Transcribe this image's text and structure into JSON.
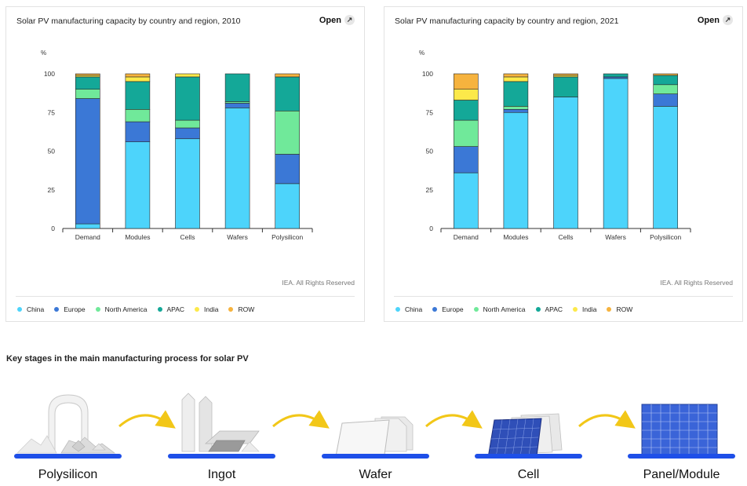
{
  "charts": [
    {
      "title": "Solar PV manufacturing capacity by country and region, 2010",
      "open_label": "Open",
      "credit": "IEA. All Rights Reserved"
    },
    {
      "title": "Solar PV manufacturing capacity by country and region, 2021",
      "open_label": "Open",
      "credit": "IEA. All Rights Reserved"
    }
  ],
  "legend": [
    {
      "name": "China",
      "color": "#4dd4fb"
    },
    {
      "name": "Europe",
      "color": "#3b78d6"
    },
    {
      "name": "North America",
      "color": "#70e99a"
    },
    {
      "name": "APAC",
      "color": "#14a898"
    },
    {
      "name": "India",
      "color": "#fce94a"
    },
    {
      "name": "ROW",
      "color": "#f6b33e"
    }
  ],
  "chart_data": [
    {
      "type": "bar",
      "stacked": true,
      "title": "Solar PV manufacturing capacity by country and region, 2010",
      "ylabel": "%",
      "ylim": [
        0,
        100
      ],
      "yticks": [
        0,
        25,
        50,
        75,
        100
      ],
      "categories": [
        "Demand",
        "Modules",
        "Cells",
        "Wafers",
        "Polysilicon"
      ],
      "series": [
        {
          "name": "China",
          "values": [
            3,
            56,
            58,
            78,
            29
          ]
        },
        {
          "name": "Europe",
          "values": [
            81,
            13,
            7,
            3,
            19
          ]
        },
        {
          "name": "North America",
          "values": [
            6,
            8,
            5,
            1,
            28
          ]
        },
        {
          "name": "APAC",
          "values": [
            8,
            18,
            28,
            18,
            22
          ]
        },
        {
          "name": "India",
          "values": [
            1,
            3,
            2,
            0,
            0
          ]
        },
        {
          "name": "ROW",
          "values": [
            1,
            2,
            0,
            0,
            2
          ]
        }
      ],
      "legend_position": "bottom",
      "grid": false
    },
    {
      "type": "bar",
      "stacked": true,
      "title": "Solar PV manufacturing capacity by country and region, 2021",
      "ylabel": "%",
      "ylim": [
        0,
        100
      ],
      "yticks": [
        0,
        25,
        50,
        75,
        100
      ],
      "categories": [
        "Demand",
        "Modules",
        "Cells",
        "Wafers",
        "Polysilicon"
      ],
      "series": [
        {
          "name": "China",
          "values": [
            36,
            75,
            85,
            97,
            79
          ]
        },
        {
          "name": "Europe",
          "values": [
            17,
            2,
            0,
            1,
            8
          ]
        },
        {
          "name": "North America",
          "values": [
            17,
            2,
            0,
            0,
            6
          ]
        },
        {
          "name": "APAC",
          "values": [
            13,
            16,
            13,
            2,
            6
          ]
        },
        {
          "name": "India",
          "values": [
            7,
            3,
            1,
            0,
            0
          ]
        },
        {
          "name": "ROW",
          "values": [
            10,
            2,
            1,
            0,
            1
          ]
        }
      ],
      "legend_position": "bottom",
      "grid": false
    }
  ],
  "process": {
    "title": "Key stages in the main manufacturing process for solar PV",
    "stages": [
      "Polysilicon",
      "Ingot",
      "Wafer",
      "Cell",
      "Panel/Module"
    ]
  }
}
